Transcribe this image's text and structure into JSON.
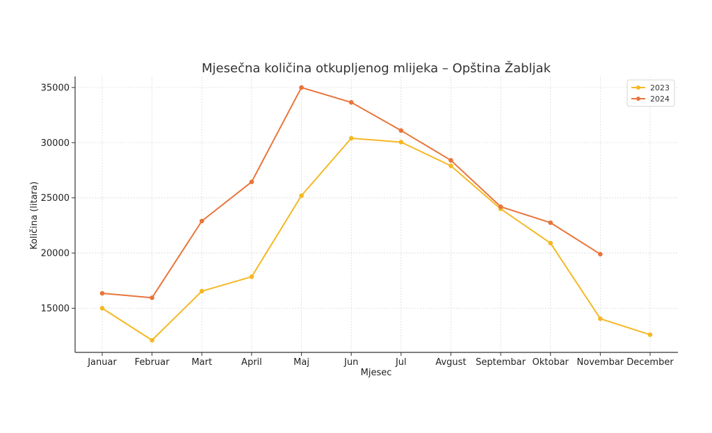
{
  "chart_data": {
    "type": "line",
    "title": "Mjesečna količina otkupljenog mlijeka – Opština Žabljak",
    "xlabel": "Mjesec",
    "ylabel": "Količina (litara)",
    "categories": [
      "Januar",
      "Februar",
      "Mart",
      "April",
      "Maj",
      "Jun",
      "Jul",
      "Avgust",
      "Septembar",
      "Oktobar",
      "Novembar",
      "December"
    ],
    "ylim": [
      11000,
      36000
    ],
    "yticks": [
      15000,
      20000,
      25000,
      30000,
      35000
    ],
    "grid": true,
    "legend_position": "top-right",
    "series": [
      {
        "name": "2023",
        "color": "#f5b823",
        "values": [
          15000,
          12100,
          16550,
          17850,
          25200,
          30400,
          30050,
          27900,
          24000,
          20900,
          14050,
          12600
        ]
      },
      {
        "name": "2024",
        "color": "#e8743b",
        "values": [
          16350,
          15950,
          22900,
          26450,
          35000,
          33650,
          31100,
          28400,
          24200,
          22750,
          19900,
          null
        ]
      }
    ]
  }
}
